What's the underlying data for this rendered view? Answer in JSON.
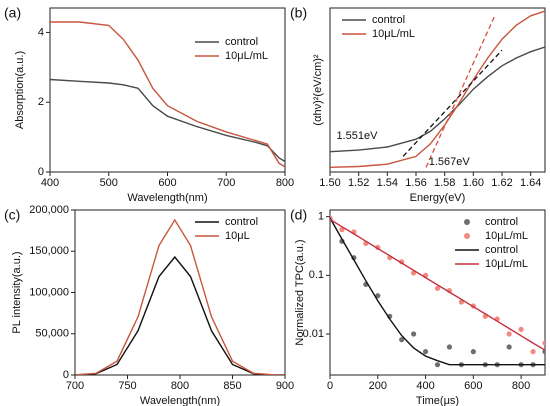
{
  "chart_data": [
    {
      "type": "line",
      "label": "(a)",
      "xlabel": "Wavelength(nm)",
      "ylabel": "Absorption(a.u.)",
      "x": [
        400,
        450,
        500,
        525,
        550,
        575,
        600,
        650,
        700,
        750,
        770,
        790,
        800
      ],
      "series": [
        {
          "name": "control",
          "color": "#4a4a4a",
          "values": [
            2.65,
            2.6,
            2.55,
            2.5,
            2.4,
            1.9,
            1.6,
            1.3,
            1.05,
            0.85,
            0.75,
            0.4,
            0.3
          ]
        },
        {
          "name": "10μL/mL",
          "color": "#c8553d",
          "values": [
            4.3,
            4.3,
            4.2,
            3.8,
            3.2,
            2.4,
            1.9,
            1.45,
            1.15,
            0.9,
            0.8,
            0.25,
            0.15
          ]
        }
      ],
      "xlim": [
        400,
        800
      ],
      "xticks": [
        400,
        500,
        600,
        700,
        800
      ],
      "ylim": [
        0,
        4.7
      ],
      "yticks": [
        0,
        2,
        4
      ],
      "legend": "upper right"
    },
    {
      "type": "line",
      "label": "(b)",
      "xlabel": "Energy(eV)",
      "ylabel": "(αhν)²(eV/cm)²",
      "x": [
        1.5,
        1.52,
        1.54,
        1.56,
        1.57,
        1.58,
        1.59,
        1.6,
        1.61,
        1.62,
        1.63,
        1.64,
        1.65
      ],
      "series": [
        {
          "name": "control",
          "color": "#4a4a4a",
          "values": [
            1.3,
            1.4,
            1.6,
            2.1,
            2.6,
            3.4,
            4.3,
            5.3,
            6.1,
            6.8,
            7.3,
            7.7,
            8.0
          ]
        },
        {
          "name": "10μL/mL",
          "color": "#c8553d",
          "values": [
            0.3,
            0.35,
            0.5,
            1.0,
            1.8,
            3.0,
            4.4,
            5.9,
            7.3,
            8.5,
            9.4,
            10.0,
            10.3
          ]
        }
      ],
      "fit_lines": [
        {
          "color": "#111111",
          "x": [
            1.551,
            1.62
          ],
          "values": [
            1.0,
            7.8
          ]
        },
        {
          "color": "#d9533d",
          "x": [
            1.567,
            1.615
          ],
          "values": [
            0.3,
            10.0
          ]
        }
      ],
      "annotations": [
        "1.551eV",
        "1.567eV"
      ],
      "xlim": [
        1.5,
        1.65
      ],
      "xticks": [
        {
          "value": 1.5,
          "label": "1.50"
        },
        1.52,
        1.54,
        1.56,
        1.58,
        {
          "value": 1.6,
          "label": "1.60"
        },
        1.62,
        1.64
      ],
      "ylim": [
        0,
        10.5
      ],
      "legend": "upper left"
    },
    {
      "type": "line",
      "label": "(c)",
      "xlabel": "Wavelength(nm)",
      "ylabel": "PL intensity(a.u.)",
      "x": [
        700,
        720,
        740,
        760,
        780,
        795,
        810,
        830,
        850,
        870,
        890,
        900
      ],
      "series": [
        {
          "name": "control",
          "color": "#111111",
          "values": [
            100,
            1600,
            12700,
            53600,
            119400,
            143000,
            119400,
            53600,
            12700,
            1600,
            100,
            0
          ]
        },
        {
          "name": "10μL",
          "color": "#c8553d",
          "values": [
            130,
            2100,
            16700,
            70500,
            157000,
            188000,
            157000,
            70500,
            16700,
            2100,
            130,
            0
          ]
        }
      ],
      "xlim": [
        700,
        900
      ],
      "xticks": [
        700,
        750,
        800,
        850,
        900
      ],
      "ylim": [
        0,
        200000
      ],
      "yticks": [
        0,
        {
          "value": 50000,
          "label": "50,000"
        },
        {
          "value": 100000,
          "label": "100,000"
        },
        {
          "value": 150000,
          "label": "150,000"
        },
        {
          "value": 200000,
          "label": "200,000"
        }
      ],
      "legend": "upper right"
    },
    {
      "type": "scatter",
      "label": "(d)",
      "xlabel": "Time(μs)",
      "ylabel": "Normalized TPC(a.u.)",
      "yscale": "log",
      "x": [
        0,
        50,
        100,
        150,
        200,
        250,
        300,
        350,
        400,
        450,
        500,
        550,
        600,
        650,
        700,
        750,
        800,
        850,
        900
      ],
      "series": [
        {
          "name": "control",
          "color": "#6e6e6e",
          "type": "scatter",
          "values": [
            0.9,
            0.38,
            0.2,
            0.07,
            0.045,
            0.02,
            0.008,
            0.01,
            0.005,
            0.003,
            0.006,
            0.003,
            0.005,
            0.003,
            0.003,
            0.006,
            0.003,
            0.003,
            0.005
          ]
        },
        {
          "name": "10μL/mL",
          "color": "#f08a80",
          "type": "scatter",
          "values": [
            0.95,
            0.6,
            0.55,
            0.35,
            0.3,
            0.2,
            0.17,
            0.11,
            0.1,
            0.06,
            0.055,
            0.035,
            0.03,
            0.02,
            0.018,
            0.01,
            0.012,
            0.005,
            0.007
          ]
        },
        {
          "name": "control",
          "color": "#111111",
          "type": "line",
          "values": [
            0.953,
            0.416,
            0.183,
            0.081,
            0.037,
            0.018,
            0.0094,
            0.0058,
            0.0042,
            0.0035,
            0.003,
            0.003,
            0.003,
            0.003,
            0.003,
            0.003,
            0.003,
            0.003,
            0.003
          ]
        },
        {
          "name": "10μL/mL",
          "color": "#c8303d",
          "type": "line",
          "values": [
            0.9,
            0.676,
            0.508,
            0.382,
            0.287,
            0.216,
            0.162,
            0.122,
            0.0915,
            0.0688,
            0.0517,
            0.0389,
            0.0292,
            0.022,
            0.0165,
            0.0124,
            0.0093,
            0.007,
            0.0053
          ]
        }
      ],
      "xlim": [
        0,
        900
      ],
      "xticks": [
        0,
        200,
        400,
        600,
        800
      ],
      "ylim": [
        0.002,
        1.3
      ],
      "yticks": [
        0.01,
        0.1,
        1
      ],
      "legend": "upper right"
    }
  ]
}
